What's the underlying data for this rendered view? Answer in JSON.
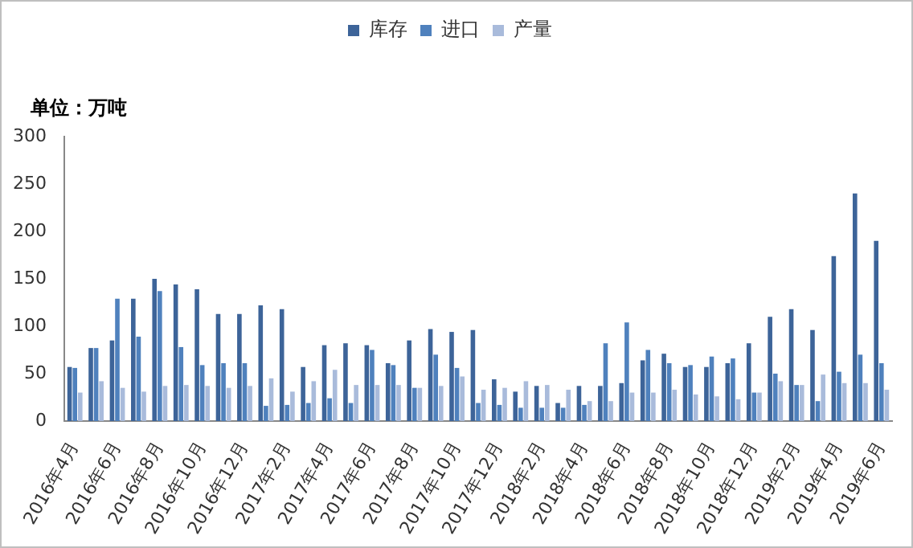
{
  "chart_data": {
    "type": "bar",
    "annotations": [
      "单位：万吨"
    ],
    "categories": [
      "2016年4月",
      null,
      "2016年6月",
      null,
      "2016年8月",
      null,
      "2016年10月",
      null,
      "2016年12月",
      null,
      "2017年2月",
      null,
      "2017年4月",
      null,
      "2017年6月",
      null,
      "2017年8月",
      null,
      "2017年10月",
      null,
      "2017年12月",
      null,
      "2018年2月",
      null,
      "2018年4月",
      null,
      "2018年6月",
      null,
      "2018年8月",
      null,
      "2018年10月",
      null,
      "2018年12月",
      null,
      "2019年2月",
      null,
      "2019年4月",
      null,
      "2019年6月"
    ],
    "series": [
      {
        "name": "库存",
        "color": "#3d6499",
        "values": [
          57,
          77,
          85,
          129,
          150,
          144,
          139,
          113,
          113,
          122,
          118,
          57,
          80,
          82,
          80,
          61,
          85,
          97,
          94,
          96,
          44,
          31,
          37,
          19,
          37,
          37,
          40,
          64,
          71,
          57,
          57,
          61,
          82,
          110,
          118,
          96,
          174,
          240,
          190
        ]
      },
      {
        "name": "进口",
        "color": "#4f81bd",
        "values": [
          56,
          77,
          129,
          89,
          137,
          78,
          59,
          61,
          61,
          16,
          17,
          19,
          24,
          19,
          75,
          59,
          35,
          70,
          56,
          19,
          17,
          14,
          14,
          14,
          17,
          82,
          104,
          75,
          61,
          59,
          68,
          66,
          30,
          50,
          38,
          21,
          52,
          70,
          61
        ]
      },
      {
        "name": "产量",
        "color": "#a9bbdb",
        "values": [
          30,
          42,
          35,
          31,
          37,
          38,
          37,
          35,
          37,
          45,
          31,
          42,
          54,
          38,
          38,
          38,
          35,
          37,
          47,
          33,
          35,
          42,
          38,
          33,
          21,
          21,
          30,
          30,
          33,
          28,
          26,
          23,
          30,
          42,
          38,
          49,
          40,
          40,
          33
        ]
      }
    ],
    "ylim": [
      0,
      300
    ],
    "yticks": [
      0,
      50,
      100,
      150,
      200,
      250,
      300
    ],
    "grid": false,
    "legend": "top"
  }
}
